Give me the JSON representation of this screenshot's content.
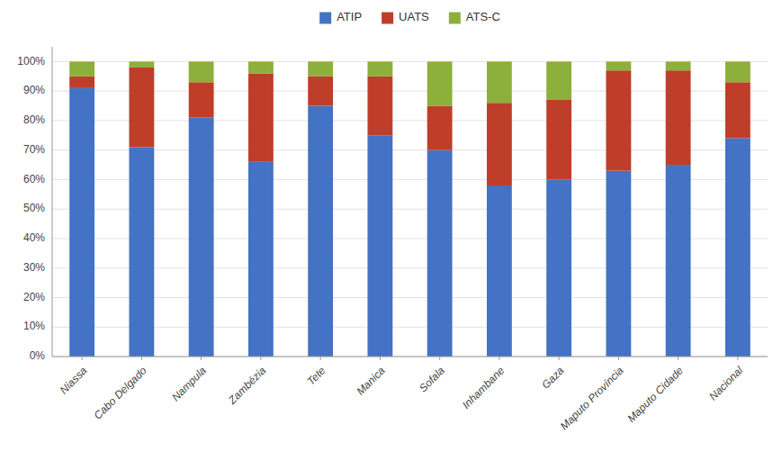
{
  "chart_data": {
    "type": "bar",
    "stacked": true,
    "categories": [
      "Niassa",
      "Cabo Delgado",
      "Nampula",
      "Zambézia",
      "Tete",
      "Manica",
      "Sofala",
      "Inhambane",
      "Gaza",
      "Maputo Província",
      "Maputo Cidade",
      "Nacional"
    ],
    "series": [
      {
        "name": "ATIP",
        "color": "#4472C4",
        "values": [
          91,
          71,
          81,
          66,
          85,
          75,
          70,
          58,
          60,
          63,
          65,
          74
        ]
      },
      {
        "name": "UATS",
        "color": "#BE3E2A",
        "values": [
          4,
          27,
          12,
          30,
          10,
          20,
          15,
          28,
          27,
          34,
          32,
          19
        ]
      },
      {
        "name": "ATS-C",
        "color": "#8DAF3B",
        "values": [
          5,
          2,
          7,
          4,
          5,
          5,
          15,
          14,
          13,
          3,
          3,
          7
        ]
      }
    ],
    "ylim": [
      0,
      105
    ],
    "yticks": [
      {
        "value": 0,
        "label": "0%"
      },
      {
        "value": 10,
        "label": "10%"
      },
      {
        "value": 20,
        "label": "20%"
      },
      {
        "value": 30,
        "label": "30%"
      },
      {
        "value": 40,
        "label": "40%"
      },
      {
        "value": 50,
        "label": "50%"
      },
      {
        "value": 60,
        "label": "60%"
      },
      {
        "value": 70,
        "label": "70%"
      },
      {
        "value": 80,
        "label": "80%"
      },
      {
        "value": 90,
        "label": "90%"
      },
      {
        "value": 100,
        "label": "100%"
      }
    ],
    "grid": true,
    "legend": "top"
  }
}
